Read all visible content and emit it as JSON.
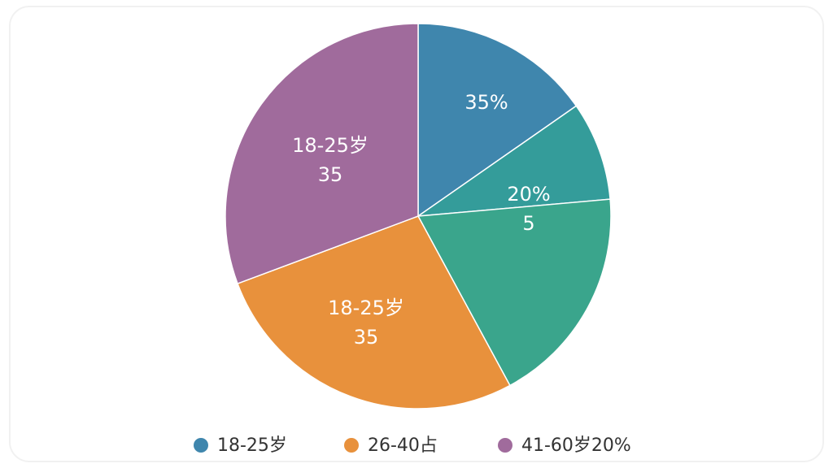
{
  "chart_data": {
    "type": "pie",
    "values": [
      15.3,
      8.3,
      18.5,
      27.2,
      30.7
    ],
    "colors": [
      "#3f86ad",
      "#349c9a",
      "#3aa58c",
      "#e8913c",
      "#a06b9c"
    ],
    "annotations": [
      {
        "lines": [
          "35%"
        ]
      },
      {
        "lines": [
          "20%",
          "5"
        ]
      },
      {
        "lines": [
          "18-25岁",
          "35"
        ]
      },
      {
        "lines": [
          "18-25岁",
          "35"
        ]
      }
    ],
    "legend": [
      {
        "name": "18-25岁",
        "color": "#3f86ad"
      },
      {
        "name": "26-40占",
        "color": "#e8913c"
      },
      {
        "name": "41-60岁20%",
        "color": "#a06b9c"
      }
    ]
  }
}
